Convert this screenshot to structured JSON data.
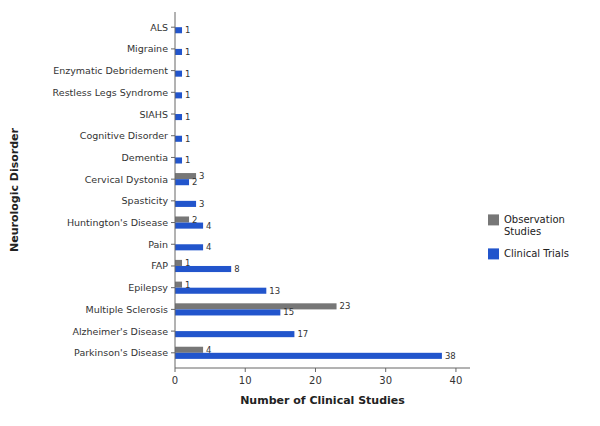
{
  "chart_data": {
    "type": "bar",
    "orientation": "horizontal",
    "xlabel": "Number of Clinical Studies",
    "ylabel": "Neurologic Disorder",
    "categories": [
      "Parkinson's Disease",
      "Alzheimer's Disease",
      "Multiple Sclerosis",
      "Epilepsy",
      "FAP",
      "Pain",
      "Huntington's Disease",
      "Spasticity",
      "Cervical Dystonia",
      "Dementia",
      "Cognitive Disorder",
      "SIAHS",
      "Restless Legs Syndrome",
      "Enzymatic Debridement",
      "Migraine",
      "ALS"
    ],
    "series": [
      {
        "name": "Observation\nStudies",
        "color": "#777777",
        "values": [
          4,
          0,
          23,
          1,
          1,
          0,
          2,
          0,
          3,
          0,
          0,
          0,
          0,
          0,
          0,
          0
        ]
      },
      {
        "name": "Clinical Trials",
        "color": "#2255CC",
        "values": [
          38,
          17,
          15,
          13,
          8,
          4,
          4,
          3,
          2,
          1,
          1,
          1,
          1,
          1,
          1,
          1
        ]
      }
    ],
    "xlim": [
      0,
      42
    ],
    "xticks": [
      0,
      10,
      20,
      30,
      40
    ],
    "data_labels": true,
    "grid": false,
    "legend": "right"
  }
}
